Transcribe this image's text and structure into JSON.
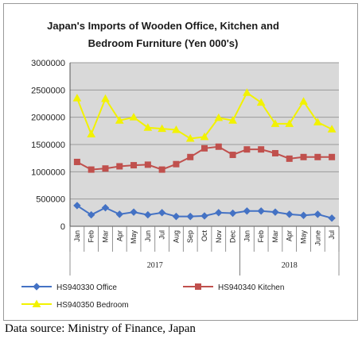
{
  "chart_data": {
    "type": "line",
    "title_lines": [
      "Japan's Imports of  Wooden Office, Kitchen and",
      "Bedroom Furniture (Yen 000's)"
    ],
    "categories": [
      "Jan",
      "Feb",
      "Mar",
      "Apr",
      "May",
      "Jun",
      "Jul",
      "Aug",
      "Sep",
      "Oct",
      "Nov",
      "Dec",
      "Jan",
      "Feb",
      "Mar",
      "Apr",
      "May",
      "June",
      "Jul"
    ],
    "year_groups": [
      {
        "label": "2017",
        "start": 0,
        "end": 11
      },
      {
        "label": "2018",
        "start": 12,
        "end": 18
      }
    ],
    "ylim": [
      0,
      3000000
    ],
    "yticks": [
      "0",
      "500000",
      "1000000",
      "1500000",
      "2000000",
      "2500000",
      "3000000"
    ],
    "grid": true,
    "legend_position": "bottom",
    "series": [
      {
        "name": "HS940330 Office",
        "color": "#4472C4",
        "marker": "diamond",
        "values": [
          380000,
          210000,
          340000,
          220000,
          260000,
          210000,
          250000,
          180000,
          180000,
          190000,
          250000,
          240000,
          280000,
          280000,
          260000,
          220000,
          200000,
          220000,
          150000
        ]
      },
      {
        "name": "HS940340 Kitchen",
        "color": "#C0504D",
        "marker": "square",
        "values": [
          1180000,
          1040000,
          1060000,
          1100000,
          1120000,
          1130000,
          1040000,
          1140000,
          1270000,
          1430000,
          1460000,
          1310000,
          1410000,
          1410000,
          1340000,
          1240000,
          1270000,
          1270000,
          1270000
        ]
      },
      {
        "name": "HS940350 Bedroom",
        "color": "#F2F200",
        "marker": "triangle",
        "values": [
          2350000,
          1690000,
          2340000,
          1940000,
          2000000,
          1810000,
          1790000,
          1770000,
          1610000,
          1640000,
          1990000,
          1940000,
          2450000,
          2270000,
          1880000,
          1880000,
          2290000,
          1910000,
          1780000
        ]
      }
    ]
  },
  "source_text": "Data source: Ministry of Finance, Japan"
}
